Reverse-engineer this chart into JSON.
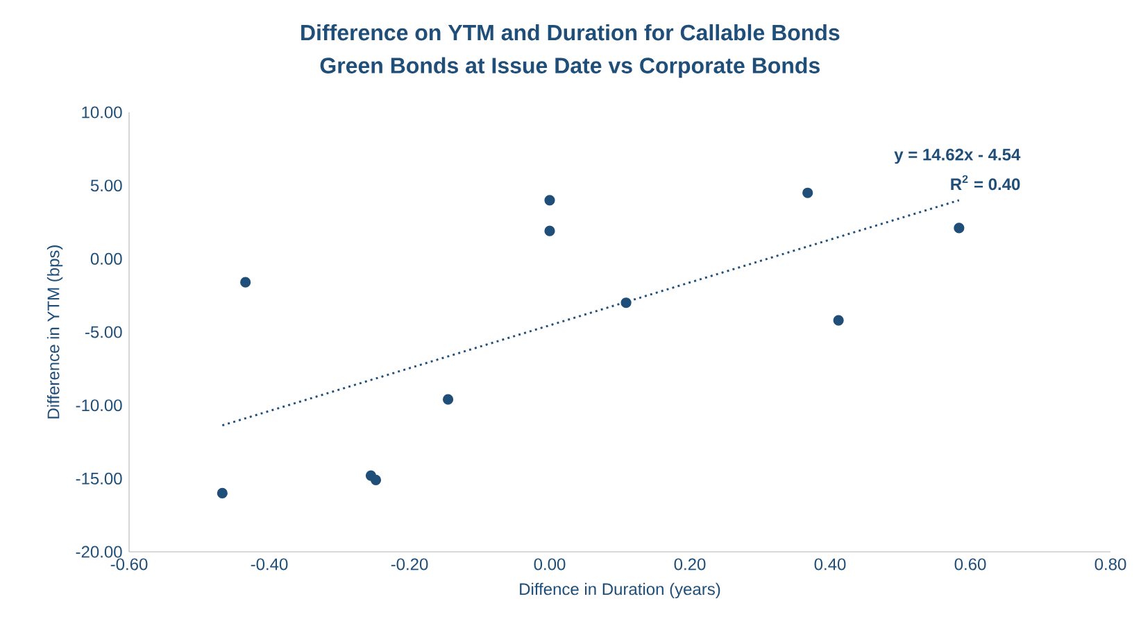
{
  "chart_data": {
    "type": "scatter",
    "title": "Difference on YTM and Duration for Callable Bonds",
    "subtitle": "Green Bonds at Issue Date vs Corporate Bonds",
    "xlabel": "Diffence in Duration (years)",
    "ylabel": "Difference in YTM (bps)",
    "series": [
      {
        "color": "#1f4e79",
        "marker": "circle",
        "x": [
          -0.467,
          -0.434,
          -0.255,
          -0.248,
          -0.145,
          0.0,
          0.0,
          0.109,
          0.368,
          0.412,
          0.584
        ],
        "values": [
          -16.0,
          -1.6,
          -14.8,
          -15.1,
          -9.6,
          4.0,
          1.9,
          -3.0,
          4.5,
          -4.2,
          2.1
        ]
      },
      {
        "type": "line",
        "color": "#1f4e79",
        "line_style": "dotted",
        "marker": "none",
        "x": [
          -0.467,
          0.584
        ],
        "values": [
          -11.37,
          4.0
        ]
      }
    ],
    "annotations": [
      "y = 14.62x - 4.54",
      "R$^{2}$ = 0.40"
    ],
    "xlim": [
      -0.6,
      0.8
    ],
    "ylim": [
      -20,
      10
    ],
    "xticks": [
      {
        "value": -0.6,
        "label": "-0.60"
      },
      {
        "value": -0.4,
        "label": "-0.40"
      },
      {
        "value": -0.2,
        "label": "-0.20"
      },
      {
        "value": 0,
        "label": "0.00"
      },
      {
        "value": 0.2,
        "label": "0.20"
      },
      {
        "value": 0.4,
        "label": "0.40"
      },
      {
        "value": 0.6,
        "label": "0.60"
      },
      {
        "value": 0.8,
        "label": "0.80"
      }
    ],
    "yticks": [
      {
        "value": -20,
        "label": "-20.00"
      },
      {
        "value": -15,
        "label": "-15.00"
      },
      {
        "value": -10,
        "label": "-10.00"
      },
      {
        "value": -5,
        "label": "-5.00"
      },
      {
        "value": 0,
        "label": "0.00"
      },
      {
        "value": 5,
        "label": "5.00"
      },
      {
        "value": 10,
        "label": "10.00"
      }
    ]
  }
}
